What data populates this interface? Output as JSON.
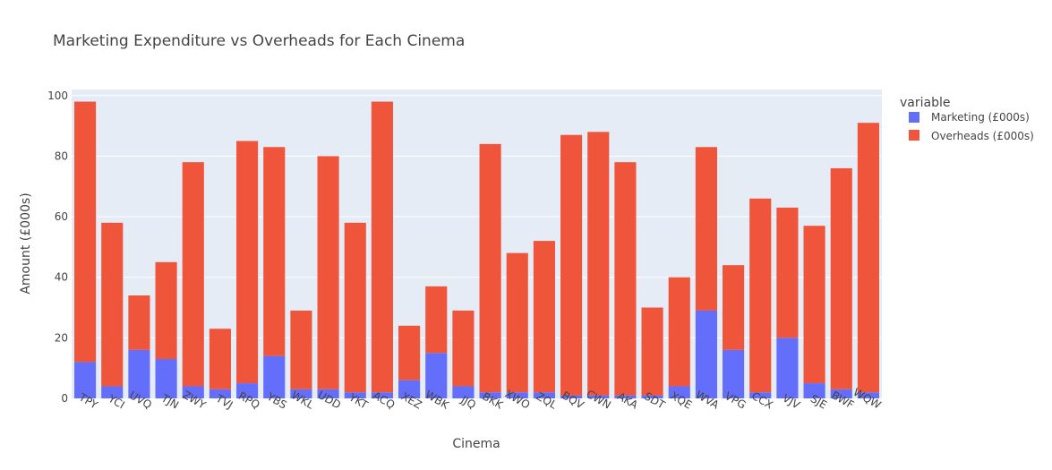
{
  "chart_data": {
    "type": "bar",
    "barmode": "stack",
    "title": "Marketing Expenditure vs Overheads for Each Cinema",
    "xlabel": "Cinema",
    "ylabel": "Amount (£000s)",
    "ylim": [
      0,
      102
    ],
    "yticks": [
      0,
      20,
      40,
      60,
      80,
      100
    ],
    "grid": true,
    "legend_title": "variable",
    "legend_position": "top-right",
    "categories": [
      "TPY",
      "YCI",
      "UVQ",
      "TJN",
      "ZWY",
      "TVJ",
      "RPQ",
      "YBS",
      "WKL",
      "UDD",
      "YKT",
      "ACQ",
      "XEZ",
      "WBK",
      "JJQ",
      "BKK",
      "XWO",
      "ZQL",
      "BQV",
      "CWN",
      "AKA",
      "SDT",
      "XQE",
      "WVA",
      "VPG",
      "CCX",
      "VJV",
      "SJE",
      "BWF",
      "WQW"
    ],
    "series": [
      {
        "name": "Marketing (£000s)",
        "color": "#636efa",
        "values": [
          12,
          4,
          16,
          13,
          4,
          3,
          5,
          14,
          3,
          3,
          2,
          2,
          6,
          15,
          4,
          2,
          2,
          2,
          1,
          1,
          1,
          1,
          4,
          29,
          16,
          2,
          20,
          5,
          3,
          2
        ]
      },
      {
        "name": "Overheads (£000s)",
        "color": "#ef553b",
        "values": [
          86,
          54,
          18,
          32,
          74,
          20,
          80,
          69,
          26,
          77,
          56,
          96,
          18,
          22,
          25,
          82,
          46,
          50,
          86,
          87,
          77,
          29,
          36,
          54,
          28,
          64,
          43,
          52,
          73,
          89
        ]
      }
    ]
  }
}
